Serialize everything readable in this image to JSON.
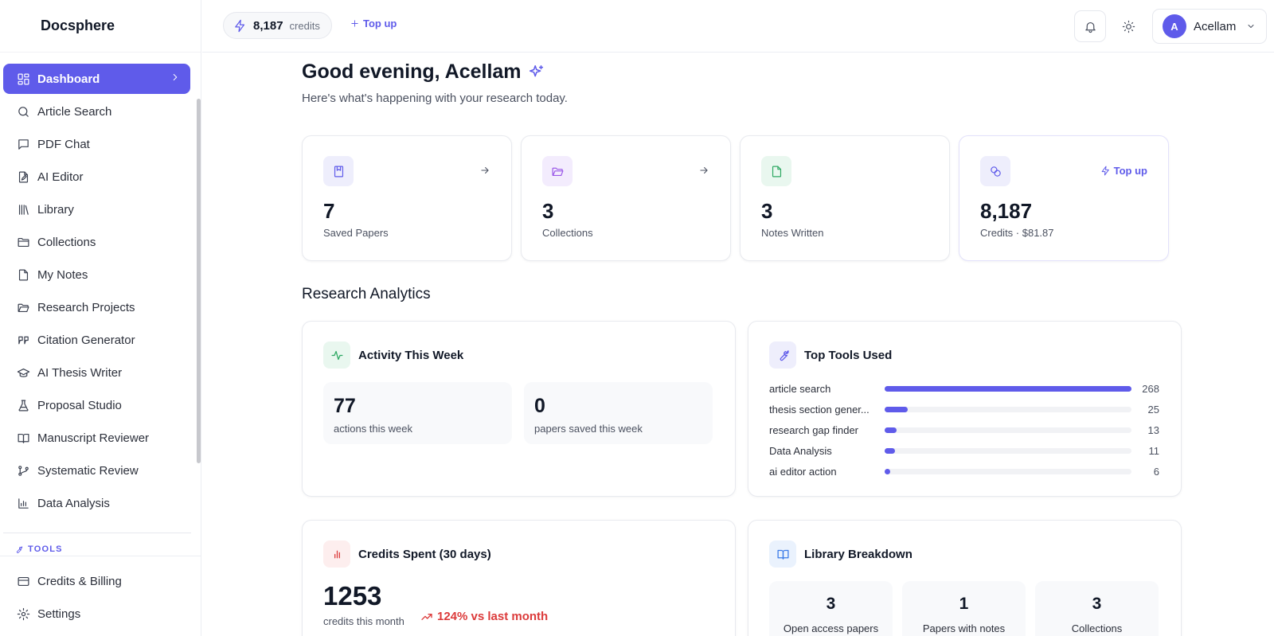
{
  "app": {
    "brand": "Docsphere"
  },
  "sidebar": {
    "items": [
      {
        "label": "Dashboard",
        "icon": "dashboard-icon"
      },
      {
        "label": "Article Search",
        "icon": "search-icon"
      },
      {
        "label": "PDF Chat",
        "icon": "chat-icon"
      },
      {
        "label": "AI Editor",
        "icon": "pen-file-icon"
      },
      {
        "label": "Library",
        "icon": "library-icon"
      },
      {
        "label": "Collections",
        "icon": "folder-icon"
      },
      {
        "label": "My Notes",
        "icon": "note-icon"
      },
      {
        "label": "Research Projects",
        "icon": "folder-open-icon"
      },
      {
        "label": "Citation Generator",
        "icon": "quote-icon"
      },
      {
        "label": "AI Thesis Writer",
        "icon": "graduation-cap-icon"
      },
      {
        "label": "Proposal Studio",
        "icon": "flask-icon"
      },
      {
        "label": "Manuscript Reviewer",
        "icon": "book-open-icon"
      },
      {
        "label": "Systematic Review",
        "icon": "git-branch-icon"
      },
      {
        "label": "Data Analysis",
        "icon": "bar-chart-icon"
      }
    ],
    "tools_label": "TOOLS",
    "bottom_items": [
      {
        "label": "Credits & Billing",
        "icon": "credit-card-icon"
      },
      {
        "label": "Settings",
        "icon": "gear-icon"
      }
    ]
  },
  "topbar": {
    "credits_value": "8,187",
    "credits_unit": "credits",
    "topup_label": "Top up",
    "user_initial": "A",
    "user_name": "Acellam"
  },
  "main": {
    "greeting": "Good evening, Acellam",
    "subtitle": "Here's what's happening with your research today.",
    "stats": [
      {
        "value": "7",
        "label": "Saved Papers"
      },
      {
        "value": "3",
        "label": "Collections"
      },
      {
        "value": "3",
        "label": "Notes Written"
      },
      {
        "value": "8,187",
        "label": "Credits · $81.87",
        "action": "Top up"
      }
    ],
    "analytics_title": "Research Analytics",
    "activity": {
      "title": "Activity This Week",
      "actions_value": "77",
      "actions_label": "actions this week",
      "papers_value": "0",
      "papers_label": "papers saved this week"
    },
    "tools": {
      "title": "Top Tools Used",
      "max": 268,
      "rows": [
        {
          "name": "article search",
          "count": 268
        },
        {
          "name": "thesis section gener...",
          "count": 25
        },
        {
          "name": "research gap finder",
          "count": 13
        },
        {
          "name": "Data Analysis",
          "count": 11
        },
        {
          "name": "ai editor action",
          "count": 6
        }
      ]
    },
    "credits_spent": {
      "title": "Credits Spent (30 days)",
      "value": "1253",
      "label": "credits this month",
      "trend": "124% vs last month"
    },
    "library": {
      "title": "Library Breakdown",
      "boxes": [
        {
          "value": "3",
          "label": "Open access papers"
        },
        {
          "value": "1",
          "label": "Papers with notes"
        },
        {
          "value": "3",
          "label": "Collections"
        }
      ]
    }
  },
  "colors": {
    "accent": "#5f5bea",
    "danger": "#dc3b3b"
  }
}
